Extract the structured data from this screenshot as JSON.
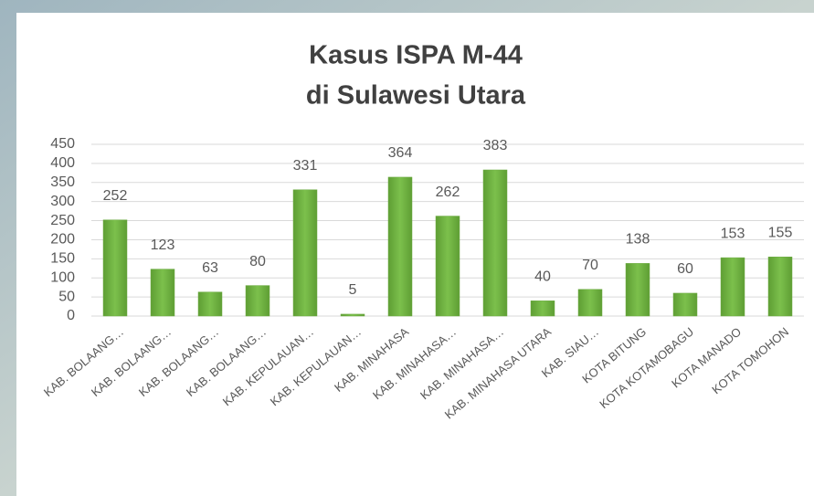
{
  "chart_data": {
    "type": "bar",
    "title": [
      "Kasus ISPA M-44",
      "di Sulawesi Utara"
    ],
    "categories": [
      "KAB. BOLAANG…",
      "KAB. BOLAANG…",
      "KAB. BOLAANG…",
      "KAB. BOLAANG…",
      "KAB. KEPULAUAN…",
      "KAB. KEPULAUAN…",
      "KAB. MINAHASA",
      "KAB. MINAHASA…",
      "KAB. MINAHASA…",
      "KAB. MINAHASA UTARA",
      "KAB. SIAU…",
      "KOTA BITUNG",
      "KOTA KOTAMOBAGU",
      "KOTA MANADO",
      "KOTA TOMOHON"
    ],
    "values": [
      252,
      123,
      63,
      80,
      331,
      5,
      364,
      262,
      383,
      40,
      70,
      138,
      60,
      153,
      155
    ],
    "color": "#70ad47",
    "ylim": [
      0,
      450
    ],
    "yticks": [
      0,
      50,
      100,
      150,
      200,
      250,
      300,
      350,
      400,
      450
    ],
    "grid": true
  }
}
